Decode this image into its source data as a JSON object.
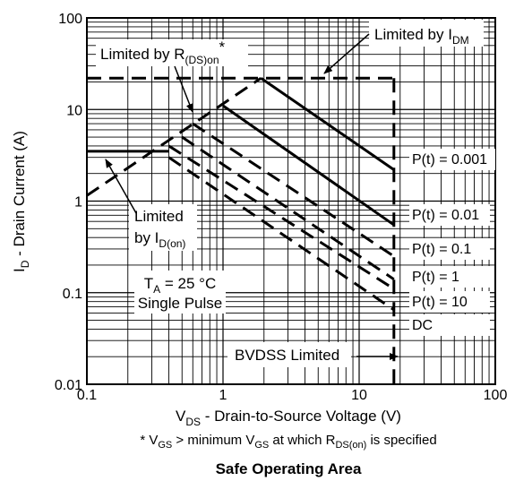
{
  "chart_data": {
    "type": "line",
    "title": "Safe Operating Area",
    "xlabel": "V_DS - Drain-to-Source Voltage (V)",
    "ylabel": "I_D - Drain Current (A)",
    "footnote": "* V_GS > minimum V_GS at which R_DS(on) is specified",
    "x_scale": "log",
    "y_scale": "log",
    "xlim": [
      0.1,
      100
    ],
    "ylim": [
      0.01,
      100
    ],
    "grid": true,
    "x_ticks": [
      "0.1",
      "1",
      "10",
      "100"
    ],
    "y_ticks": [
      "0.01",
      "0.1",
      "1",
      "10",
      "100"
    ],
    "series": [
      {
        "name": "P(t) = 0.001",
        "style": "solid",
        "x": [
          1.9,
          18
        ],
        "y": [
          22,
          2.2
        ]
      },
      {
        "name": "P(t) = 0.01",
        "style": "solid",
        "x": [
          1.0,
          18
        ],
        "y": [
          11,
          0.55
        ]
      },
      {
        "name": "P(t) = 0.1",
        "style": "dashed",
        "x": [
          0.6,
          18
        ],
        "y": [
          7,
          0.25
        ]
      },
      {
        "name": "P(t) = 1",
        "style": "dashed",
        "x": [
          0.5,
          18
        ],
        "y": [
          5,
          0.14
        ]
      },
      {
        "name": "P(t) = 10",
        "style": "dashed",
        "x": [
          0.4,
          18
        ],
        "y": [
          4,
          0.11
        ]
      },
      {
        "name": "DC",
        "style": "dashed",
        "x": [
          0.4,
          18
        ],
        "y": [
          3,
          0.065
        ]
      }
    ],
    "limits": {
      "rds_on": {
        "style": "dashed",
        "x": [
          0.1,
          1.9
        ],
        "y": [
          1.15,
          22
        ]
      },
      "idm": {
        "style": "dashed",
        "x": [
          0.1,
          18
        ],
        "y": [
          22,
          22
        ]
      },
      "id_on": {
        "style": "solid",
        "x": [
          0.1,
          0.4
        ],
        "y": [
          3.5,
          3.5
        ]
      },
      "bvdss": {
        "style": "dashed",
        "x": [
          18,
          18
        ],
        "y": [
          22,
          0.01
        ]
      }
    },
    "annotations": {
      "rds": {
        "base": "Limited by R",
        "sub": "(DS)on",
        "sup": "*"
      },
      "idm": {
        "base": "Limited by I",
        "sub": "DM"
      },
      "idon_line1": "Limited",
      "idon_base": "by I",
      "idon_sub": "D(on)",
      "ta_base": "T",
      "ta_sub": "A",
      "ta_rest": " = 25 °C",
      "pulse": "Single Pulse",
      "bvdss": "BVDSS Limited"
    },
    "axis_text": {
      "y_base": "I",
      "y_sub": "D",
      "y_rest": " - Drain Current (A)",
      "x_base": "V",
      "x_sub": "DS",
      "x_rest": " - Drain-to-Source Voltage (V)",
      "fn_star": "* V",
      "fn_gs": "GS",
      "fn_mid": " > minimum V",
      "fn_gs2": "GS",
      "fn_mid2": " at which R",
      "fn_rds": "DS(on)",
      "fn_end": " is specified"
    }
  }
}
